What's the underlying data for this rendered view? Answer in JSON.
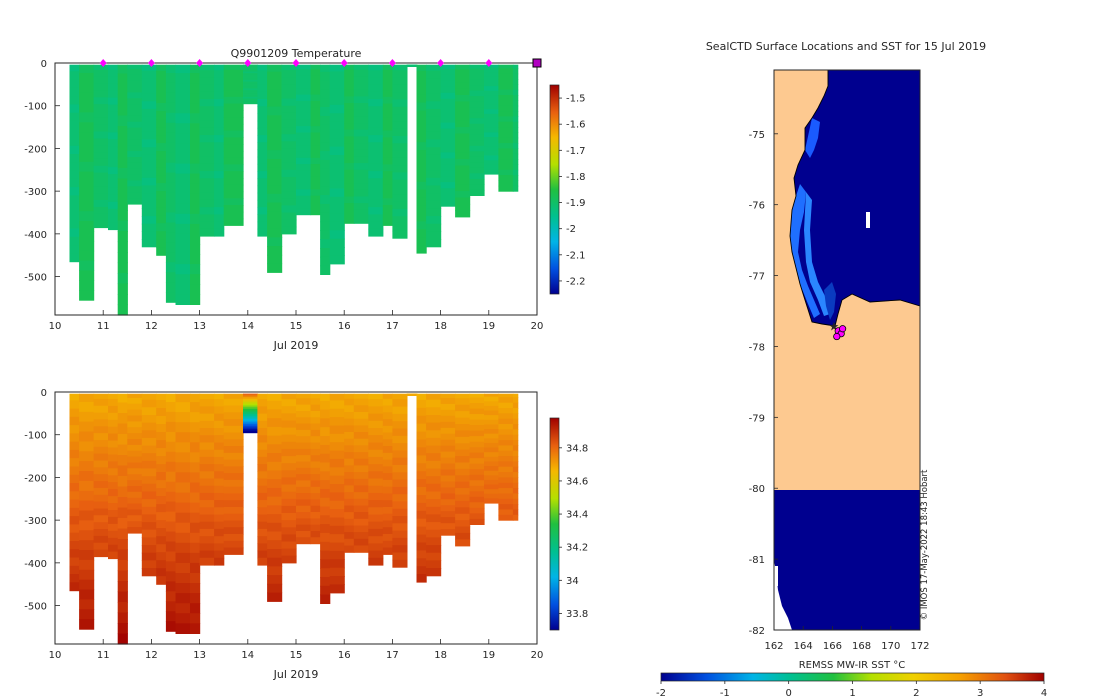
{
  "chart_data": [
    {
      "type": "heatmap",
      "title": "Q9901209  Temperature",
      "xlabel": "Jul 2019",
      "ylabel": "",
      "xlim": [
        10,
        20
      ],
      "ylim": [
        -590,
        0
      ],
      "x_ticks": [
        "10",
        "11",
        "12",
        "13",
        "14",
        "15",
        "16",
        "17",
        "18",
        "19",
        "20"
      ],
      "y_ticks": [
        "0",
        "-100",
        "-200",
        "-300",
        "-400",
        "-500"
      ],
      "colorbar": {
        "min": -2.25,
        "max": -1.45,
        "ticks": [
          "-1.5",
          "-1.6",
          "-1.7",
          "-1.8",
          "-1.9",
          "-2",
          "-2.1",
          "-2.2"
        ]
      },
      "profile_markers_day": [
        11,
        12,
        13,
        14,
        15,
        16,
        17,
        18,
        19,
        20
      ],
      "profiles": [
        {
          "day": 10.3,
          "depth": 465
        },
        {
          "day": 10.5,
          "depth": 555
        },
        {
          "day": 10.8,
          "depth": 385
        },
        {
          "day": 11.1,
          "depth": 390
        },
        {
          "day": 11.3,
          "depth": 590
        },
        {
          "day": 11.5,
          "depth": 330
        },
        {
          "day": 11.8,
          "depth": 430
        },
        {
          "day": 12.1,
          "depth": 450
        },
        {
          "day": 12.3,
          "depth": 560
        },
        {
          "day": 12.5,
          "depth": 565
        },
        {
          "day": 12.8,
          "depth": 565
        },
        {
          "day": 13.0,
          "depth": 405
        },
        {
          "day": 13.3,
          "depth": 405
        },
        {
          "day": 13.5,
          "depth": 380
        },
        {
          "day": 13.9,
          "depth": 95
        },
        {
          "day": 14.2,
          "depth": 405
        },
        {
          "day": 14.4,
          "depth": 490
        },
        {
          "day": 14.7,
          "depth": 400
        },
        {
          "day": 15.0,
          "depth": 355
        },
        {
          "day": 15.3,
          "depth": 355
        },
        {
          "day": 15.5,
          "depth": 495
        },
        {
          "day": 15.7,
          "depth": 470
        },
        {
          "day": 16.0,
          "depth": 375
        },
        {
          "day": 16.2,
          "depth": 375
        },
        {
          "day": 16.5,
          "depth": 405
        },
        {
          "day": 16.8,
          "depth": 380
        },
        {
          "day": 17.0,
          "depth": 410
        },
        {
          "day": 17.3,
          "depth": 8
        },
        {
          "day": 17.5,
          "depth": 445
        },
        {
          "day": 17.7,
          "depth": 430
        },
        {
          "day": 18.0,
          "depth": 335
        },
        {
          "day": 18.3,
          "depth": 360
        },
        {
          "day": 18.6,
          "depth": 310
        },
        {
          "day": 18.9,
          "depth": 260
        },
        {
          "day": 19.2,
          "depth": 300
        },
        {
          "day": 19.5,
          "depth": 300
        }
      ]
    },
    {
      "type": "heatmap",
      "title": "",
      "xlabel": "Jul 2019",
      "ylabel": "",
      "xlim": [
        10,
        20
      ],
      "ylim": [
        -590,
        0
      ],
      "x_ticks": [
        "10",
        "11",
        "12",
        "13",
        "14",
        "15",
        "16",
        "17",
        "18",
        "19",
        "20"
      ],
      "y_ticks": [
        "0",
        "-100",
        "-200",
        "-300",
        "-400",
        "-500"
      ],
      "colorbar": {
        "min": 33.7,
        "max": 34.98,
        "ticks": [
          "34.8",
          "34.6",
          "34.4",
          "34.2",
          "34",
          "33.8"
        ]
      }
    },
    {
      "type": "heatmap",
      "title": "SealCTD Surface Locations and SST for 15 Jul 2019",
      "xlabel": "",
      "ylabel": "",
      "xlim": [
        162,
        172
      ],
      "ylim": [
        -82,
        -74.1
      ],
      "x_ticks": [
        "162",
        "164",
        "166",
        "168",
        "170",
        "172"
      ],
      "y_ticks": [
        "-75",
        "-76",
        "-77",
        "-78",
        "-79",
        "-80",
        "-81",
        "-82"
      ],
      "colorbar": {
        "label": "REMSS MW-IR SST °C",
        "min": -2,
        "max": 4,
        "ticks": [
          "-2",
          "-1",
          "0",
          "1",
          "2",
          "3",
          "4"
        ]
      },
      "points_lon_lat": [
        [
          166.1,
          -77.72
        ],
        [
          166.4,
          -77.78
        ],
        [
          166.6,
          -77.82
        ],
        [
          166.3,
          -77.86
        ],
        [
          166.7,
          -77.75
        ]
      ],
      "credit": "© IMOS 17-May-2022 18:43 Hobart"
    }
  ]
}
